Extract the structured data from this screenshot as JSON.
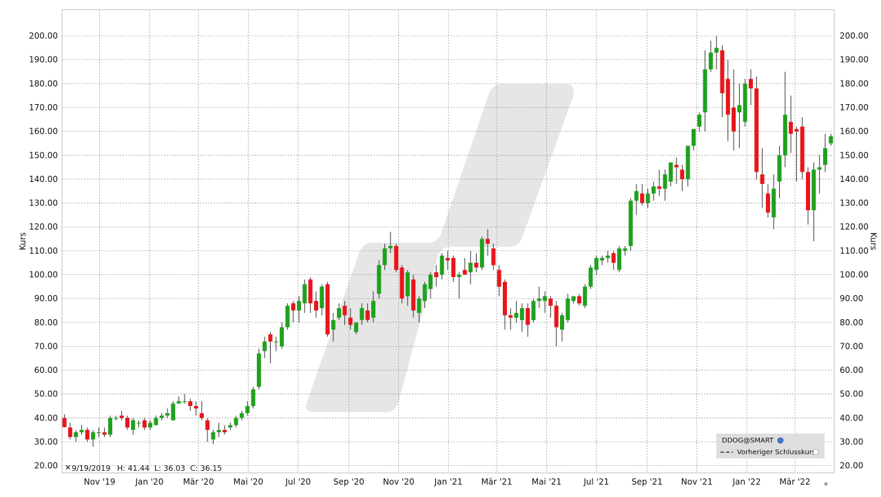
{
  "colors": {
    "up": "#1fa11f",
    "down": "#e8151b",
    "grid": "#9a9a9a",
    "watermark": "#e6e6e6",
    "legend_bg": "#dedede"
  },
  "info_bar": {
    "date": "9/19/2019",
    "high": "H: 41.44",
    "low": "L: 36.03",
    "close": "C: 36.15"
  },
  "legend": {
    "symbol": "DDOG@SMART",
    "previous_close": "Vorheriger Schlusskurs"
  },
  "chart_data": {
    "type": "candlestick",
    "ylabel": "Kurs",
    "ylim": [
      17,
      211
    ],
    "y_ticks": [
      "20.00",
      "30.00",
      "40.00",
      "50.00",
      "60.00",
      "70.00",
      "80.00",
      "90.00",
      "100.00",
      "110.00",
      "120.00",
      "130.00",
      "140.00",
      "150.00",
      "160.00",
      "170.00",
      "180.00",
      "190.00",
      "200.00"
    ],
    "x_ticks": [
      {
        "label": "Nov '19",
        "date": "2019-11-01"
      },
      {
        "label": "Jan '20",
        "date": "2020-01-01"
      },
      {
        "label": "Mär '20",
        "date": "2020-03-01"
      },
      {
        "label": "Mai '20",
        "date": "2020-05-01"
      },
      {
        "label": "Jul '20",
        "date": "2020-07-01"
      },
      {
        "label": "Sep '20",
        "date": "2020-09-01"
      },
      {
        "label": "Nov '20",
        "date": "2020-11-01"
      },
      {
        "label": "Jan '21",
        "date": "2021-01-01"
      },
      {
        "label": "Mär '21",
        "date": "2021-03-01"
      },
      {
        "label": "Mai '21",
        "date": "2021-05-01"
      },
      {
        "label": "Jul '21",
        "date": "2021-07-01"
      },
      {
        "label": "Sep '21",
        "date": "2021-09-01"
      },
      {
        "label": "Nov '21",
        "date": "2021-11-01"
      },
      {
        "label": "Jan '22",
        "date": "2022-01-01"
      },
      {
        "label": "Mär '22",
        "date": "2022-03-01"
      }
    ],
    "x_range": [
      "2019-09-16",
      "2022-04-18"
    ],
    "candles": [
      {
        "date": "2019-09-19",
        "o": 40,
        "h": 41.44,
        "l": 36.03,
        "c": 36.15
      },
      {
        "date": "2019-09-26",
        "o": 36,
        "h": 38,
        "l": 31,
        "c": 32
      },
      {
        "date": "2019-10-03",
        "o": 32,
        "h": 35,
        "l": 30,
        "c": 34
      },
      {
        "date": "2019-10-10",
        "o": 34,
        "h": 37,
        "l": 33,
        "c": 35
      },
      {
        "date": "2019-10-17",
        "o": 35,
        "h": 36,
        "l": 30,
        "c": 31
      },
      {
        "date": "2019-10-24",
        "o": 31,
        "h": 35,
        "l": 28,
        "c": 34
      },
      {
        "date": "2019-10-31",
        "o": 34,
        "h": 36,
        "l": 32,
        "c": 34
      },
      {
        "date": "2019-11-07",
        "o": 34,
        "h": 36,
        "l": 32,
        "c": 33
      },
      {
        "date": "2019-11-14",
        "o": 33,
        "h": 41,
        "l": 32,
        "c": 40
      },
      {
        "date": "2019-11-21",
        "o": 40,
        "h": 41,
        "l": 39,
        "c": 40
      },
      {
        "date": "2019-11-28",
        "o": 41,
        "h": 43,
        "l": 39,
        "c": 40
      },
      {
        "date": "2019-12-05",
        "o": 40,
        "h": 41,
        "l": 35,
        "c": 36
      },
      {
        "date": "2019-12-12",
        "o": 35,
        "h": 40,
        "l": 33,
        "c": 39
      },
      {
        "date": "2019-12-19",
        "o": 38,
        "h": 39,
        "l": 36,
        "c": 38
      },
      {
        "date": "2019-12-26",
        "o": 39,
        "h": 40,
        "l": 35,
        "c": 36
      },
      {
        "date": "2020-01-02",
        "o": 36,
        "h": 39,
        "l": 35,
        "c": 38
      },
      {
        "date": "2020-01-09",
        "o": 37,
        "h": 41,
        "l": 37,
        "c": 40
      },
      {
        "date": "2020-01-16",
        "o": 40,
        "h": 42,
        "l": 39,
        "c": 41
      },
      {
        "date": "2020-01-23",
        "o": 41,
        "h": 44,
        "l": 40,
        "c": 42
      },
      {
        "date": "2020-01-30",
        "o": 39,
        "h": 47,
        "l": 39,
        "c": 46
      },
      {
        "date": "2020-02-06",
        "o": 46,
        "h": 49,
        "l": 46,
        "c": 47
      },
      {
        "date": "2020-02-13",
        "o": 47,
        "h": 50,
        "l": 46,
        "c": 47
      },
      {
        "date": "2020-02-20",
        "o": 47,
        "h": 48,
        "l": 43,
        "c": 45
      },
      {
        "date": "2020-02-27",
        "o": 45,
        "h": 47,
        "l": 41,
        "c": 44
      },
      {
        "date": "2020-03-05",
        "o": 42,
        "h": 47,
        "l": 39,
        "c": 40
      },
      {
        "date": "2020-03-12",
        "o": 39,
        "h": 40,
        "l": 30,
        "c": 35
      },
      {
        "date": "2020-03-19",
        "o": 31,
        "h": 35,
        "l": 29,
        "c": 34
      },
      {
        "date": "2020-03-26",
        "o": 34,
        "h": 38,
        "l": 32,
        "c": 35
      },
      {
        "date": "2020-04-02",
        "o": 35,
        "h": 37,
        "l": 33,
        "c": 34
      },
      {
        "date": "2020-04-09",
        "o": 36,
        "h": 38,
        "l": 35,
        "c": 37
      },
      {
        "date": "2020-04-16",
        "o": 37,
        "h": 41,
        "l": 36,
        "c": 40
      },
      {
        "date": "2020-04-23",
        "o": 40,
        "h": 43,
        "l": 39,
        "c": 42
      },
      {
        "date": "2020-04-30",
        "o": 42,
        "h": 47,
        "l": 41,
        "c": 45
      },
      {
        "date": "2020-05-07",
        "o": 45,
        "h": 53,
        "l": 44,
        "c": 52
      },
      {
        "date": "2020-05-14",
        "o": 53,
        "h": 69,
        "l": 52,
        "c": 67
      },
      {
        "date": "2020-05-21",
        "o": 68,
        "h": 74,
        "l": 65,
        "c": 72
      },
      {
        "date": "2020-05-28",
        "o": 75,
        "h": 76,
        "l": 63,
        "c": 72
      },
      {
        "date": "2020-06-04",
        "o": 72,
        "h": 74,
        "l": 68,
        "c": 72
      },
      {
        "date": "2020-06-11",
        "o": 70,
        "h": 80,
        "l": 69,
        "c": 78
      },
      {
        "date": "2020-06-18",
        "o": 78,
        "h": 88,
        "l": 77,
        "c": 87
      },
      {
        "date": "2020-06-25",
        "o": 88,
        "h": 89,
        "l": 80,
        "c": 85
      },
      {
        "date": "2020-07-02",
        "o": 85,
        "h": 91,
        "l": 80,
        "c": 89
      },
      {
        "date": "2020-07-09",
        "o": 88,
        "h": 98,
        "l": 84,
        "c": 96
      },
      {
        "date": "2020-07-16",
        "o": 98,
        "h": 99,
        "l": 84,
        "c": 88
      },
      {
        "date": "2020-07-23",
        "o": 89,
        "h": 93,
        "l": 82,
        "c": 85
      },
      {
        "date": "2020-07-30",
        "o": 86,
        "h": 96,
        "l": 83,
        "c": 95
      },
      {
        "date": "2020-08-06",
        "o": 96,
        "h": 97,
        "l": 74,
        "c": 75
      },
      {
        "date": "2020-08-13",
        "o": 77,
        "h": 84,
        "l": 72,
        "c": 81
      },
      {
        "date": "2020-08-20",
        "o": 82,
        "h": 88,
        "l": 81,
        "c": 86
      },
      {
        "date": "2020-08-27",
        "o": 87,
        "h": 89,
        "l": 79,
        "c": 83
      },
      {
        "date": "2020-09-03",
        "o": 82,
        "h": 86,
        "l": 77,
        "c": 79
      },
      {
        "date": "2020-09-10",
        "o": 76,
        "h": 80,
        "l": 75,
        "c": 80
      },
      {
        "date": "2020-09-17",
        "o": 81,
        "h": 88,
        "l": 79,
        "c": 86
      },
      {
        "date": "2020-09-24",
        "o": 85,
        "h": 88,
        "l": 80,
        "c": 81
      },
      {
        "date": "2020-10-01",
        "o": 82,
        "h": 93,
        "l": 80,
        "c": 89
      },
      {
        "date": "2020-10-08",
        "o": 92,
        "h": 106,
        "l": 90,
        "c": 104
      },
      {
        "date": "2020-10-15",
        "o": 104,
        "h": 113,
        "l": 102,
        "c": 111
      },
      {
        "date": "2020-10-22",
        "o": 111,
        "h": 118,
        "l": 109,
        "c": 112
      },
      {
        "date": "2020-10-29",
        "o": 112,
        "h": 113,
        "l": 101,
        "c": 102
      },
      {
        "date": "2020-11-05",
        "o": 103,
        "h": 104,
        "l": 88,
        "c": 90
      },
      {
        "date": "2020-11-12",
        "o": 91,
        "h": 102,
        "l": 87,
        "c": 101
      },
      {
        "date": "2020-11-19",
        "o": 98,
        "h": 100,
        "l": 82,
        "c": 85
      },
      {
        "date": "2020-11-26",
        "o": 84,
        "h": 91,
        "l": 80,
        "c": 90
      },
      {
        "date": "2020-12-03",
        "o": 89,
        "h": 97,
        "l": 86,
        "c": 96
      },
      {
        "date": "2020-12-10",
        "o": 94,
        "h": 101,
        "l": 90,
        "c": 100
      },
      {
        "date": "2020-12-17",
        "o": 101,
        "h": 104,
        "l": 95,
        "c": 99
      },
      {
        "date": "2020-12-24",
        "o": 100,
        "h": 109,
        "l": 98,
        "c": 108
      },
      {
        "date": "2020-12-31",
        "o": 107,
        "h": 110,
        "l": 102,
        "c": 106
      },
      {
        "date": "2021-01-07",
        "o": 107,
        "h": 108,
        "l": 97,
        "c": 99
      },
      {
        "date": "2021-01-14",
        "o": 99,
        "h": 101,
        "l": 90,
        "c": 100
      },
      {
        "date": "2021-01-21",
        "o": 102,
        "h": 107,
        "l": 100,
        "c": 100
      },
      {
        "date": "2021-01-28",
        "o": 101,
        "h": 110,
        "l": 96,
        "c": 105
      },
      {
        "date": "2021-02-04",
        "o": 105,
        "h": 109,
        "l": 101,
        "c": 103
      },
      {
        "date": "2021-02-11",
        "o": 103,
        "h": 116,
        "l": 102,
        "c": 115
      },
      {
        "date": "2021-02-18",
        "o": 115,
        "h": 119,
        "l": 108,
        "c": 113
      },
      {
        "date": "2021-02-25",
        "o": 111,
        "h": 113,
        "l": 102,
        "c": 104
      },
      {
        "date": "2021-03-04",
        "o": 102,
        "h": 104,
        "l": 91,
        "c": 95
      },
      {
        "date": "2021-03-11",
        "o": 97,
        "h": 98,
        "l": 77,
        "c": 83
      },
      {
        "date": "2021-03-18",
        "o": 83,
        "h": 86,
        "l": 77,
        "c": 82
      },
      {
        "date": "2021-03-25",
        "o": 82,
        "h": 89,
        "l": 80,
        "c": 84
      },
      {
        "date": "2021-04-01",
        "o": 81,
        "h": 88,
        "l": 76,
        "c": 86
      },
      {
        "date": "2021-04-08",
        "o": 86,
        "h": 88,
        "l": 74,
        "c": 79
      },
      {
        "date": "2021-04-15",
        "o": 81,
        "h": 90,
        "l": 80,
        "c": 89
      },
      {
        "date": "2021-04-22",
        "o": 89,
        "h": 95,
        "l": 86,
        "c": 90
      },
      {
        "date": "2021-04-29",
        "o": 89,
        "h": 93,
        "l": 84,
        "c": 91
      },
      {
        "date": "2021-05-06",
        "o": 90,
        "h": 91,
        "l": 82,
        "c": 87
      },
      {
        "date": "2021-05-13",
        "o": 87,
        "h": 89,
        "l": 70,
        "c": 78
      },
      {
        "date": "2021-05-20",
        "o": 77,
        "h": 84,
        "l": 72,
        "c": 83
      },
      {
        "date": "2021-05-27",
        "o": 81,
        "h": 92,
        "l": 80,
        "c": 90
      },
      {
        "date": "2021-06-03",
        "o": 89,
        "h": 91,
        "l": 88,
        "c": 91
      },
      {
        "date": "2021-06-10",
        "o": 91,
        "h": 92,
        "l": 87,
        "c": 88
      },
      {
        "date": "2021-06-17",
        "o": 87,
        "h": 96,
        "l": 86,
        "c": 95
      },
      {
        "date": "2021-06-24",
        "o": 95,
        "h": 104,
        "l": 94,
        "c": 103
      },
      {
        "date": "2021-07-01",
        "o": 102,
        "h": 108,
        "l": 100,
        "c": 107
      },
      {
        "date": "2021-07-08",
        "o": 106,
        "h": 108,
        "l": 104,
        "c": 107
      },
      {
        "date": "2021-07-15",
        "o": 107,
        "h": 110,
        "l": 105,
        "c": 108
      },
      {
        "date": "2021-07-22",
        "o": 109,
        "h": 110,
        "l": 102,
        "c": 105
      },
      {
        "date": "2021-07-29",
        "o": 102,
        "h": 112,
        "l": 101,
        "c": 111
      },
      {
        "date": "2021-08-05",
        "o": 110,
        "h": 112,
        "l": 108,
        "c": 111
      },
      {
        "date": "2021-08-12",
        "o": 112,
        "h": 132,
        "l": 110,
        "c": 131
      },
      {
        "date": "2021-08-19",
        "o": 131,
        "h": 138,
        "l": 125,
        "c": 135
      },
      {
        "date": "2021-08-26",
        "o": 134,
        "h": 138,
        "l": 129,
        "c": 130
      },
      {
        "date": "2021-09-02",
        "o": 130,
        "h": 136,
        "l": 128,
        "c": 134
      },
      {
        "date": "2021-09-09",
        "o": 134,
        "h": 139,
        "l": 131,
        "c": 137
      },
      {
        "date": "2021-09-16",
        "o": 137,
        "h": 144,
        "l": 133,
        "c": 136
      },
      {
        "date": "2021-09-23",
        "o": 136,
        "h": 144,
        "l": 131,
        "c": 142
      },
      {
        "date": "2021-09-30",
        "o": 139,
        "h": 147,
        "l": 137,
        "c": 147
      },
      {
        "date": "2021-10-07",
        "o": 146,
        "h": 149,
        "l": 138,
        "c": 145
      },
      {
        "date": "2021-10-14",
        "o": 144,
        "h": 146,
        "l": 135,
        "c": 140
      },
      {
        "date": "2021-10-21",
        "o": 140,
        "h": 154,
        "l": 137,
        "c": 154
      },
      {
        "date": "2021-10-28",
        "o": 154,
        "h": 161,
        "l": 152,
        "c": 161
      },
      {
        "date": "2021-11-04",
        "o": 162,
        "h": 168,
        "l": 160,
        "c": 167
      },
      {
        "date": "2021-11-11",
        "o": 168,
        "h": 194,
        "l": 160,
        "c": 186
      },
      {
        "date": "2021-11-18",
        "o": 186,
        "h": 198,
        "l": 185,
        "c": 193
      },
      {
        "date": "2021-11-25",
        "o": 193,
        "h": 200,
        "l": 186,
        "c": 195
      },
      {
        "date": "2021-12-02",
        "o": 194,
        "h": 196,
        "l": 166,
        "c": 176
      },
      {
        "date": "2021-12-09",
        "o": 182,
        "h": 190,
        "l": 156,
        "c": 167
      },
      {
        "date": "2021-12-16",
        "o": 170,
        "h": 186,
        "l": 152,
        "c": 160
      },
      {
        "date": "2021-12-23",
        "o": 168,
        "h": 180,
        "l": 153,
        "c": 171
      },
      {
        "date": "2021-12-30",
        "o": 164,
        "h": 182,
        "l": 162,
        "c": 180
      },
      {
        "date": "2022-01-06",
        "o": 182,
        "h": 186,
        "l": 171,
        "c": 178
      },
      {
        "date": "2022-01-13",
        "o": 178,
        "h": 183,
        "l": 140,
        "c": 143
      },
      {
        "date": "2022-01-20",
        "o": 142,
        "h": 153,
        "l": 128,
        "c": 138
      },
      {
        "date": "2022-01-27",
        "o": 134,
        "h": 138,
        "l": 124,
        "c": 126
      },
      {
        "date": "2022-02-03",
        "o": 124,
        "h": 142,
        "l": 119,
        "c": 136
      },
      {
        "date": "2022-02-10",
        "o": 139,
        "h": 154,
        "l": 132,
        "c": 150
      },
      {
        "date": "2022-02-17",
        "o": 150,
        "h": 185,
        "l": 145,
        "c": 167
      },
      {
        "date": "2022-02-24",
        "o": 164,
        "h": 175,
        "l": 151,
        "c": 159
      },
      {
        "date": "2022-03-03",
        "o": 161,
        "h": 162,
        "l": 139,
        "c": 160
      },
      {
        "date": "2022-03-10",
        "o": 162,
        "h": 166,
        "l": 140,
        "c": 143
      },
      {
        "date": "2022-03-17",
        "o": 143,
        "h": 145,
        "l": 121,
        "c": 127
      },
      {
        "date": "2022-03-24",
        "o": 127,
        "h": 147,
        "l": 114,
        "c": 144
      },
      {
        "date": "2022-03-31",
        "o": 144,
        "h": 150,
        "l": 134,
        "c": 145
      },
      {
        "date": "2022-04-07",
        "o": 146,
        "h": 159,
        "l": 143,
        "c": 153
      },
      {
        "date": "2022-04-14",
        "o": 155,
        "h": 159,
        "l": 154,
        "c": 158
      }
    ]
  }
}
